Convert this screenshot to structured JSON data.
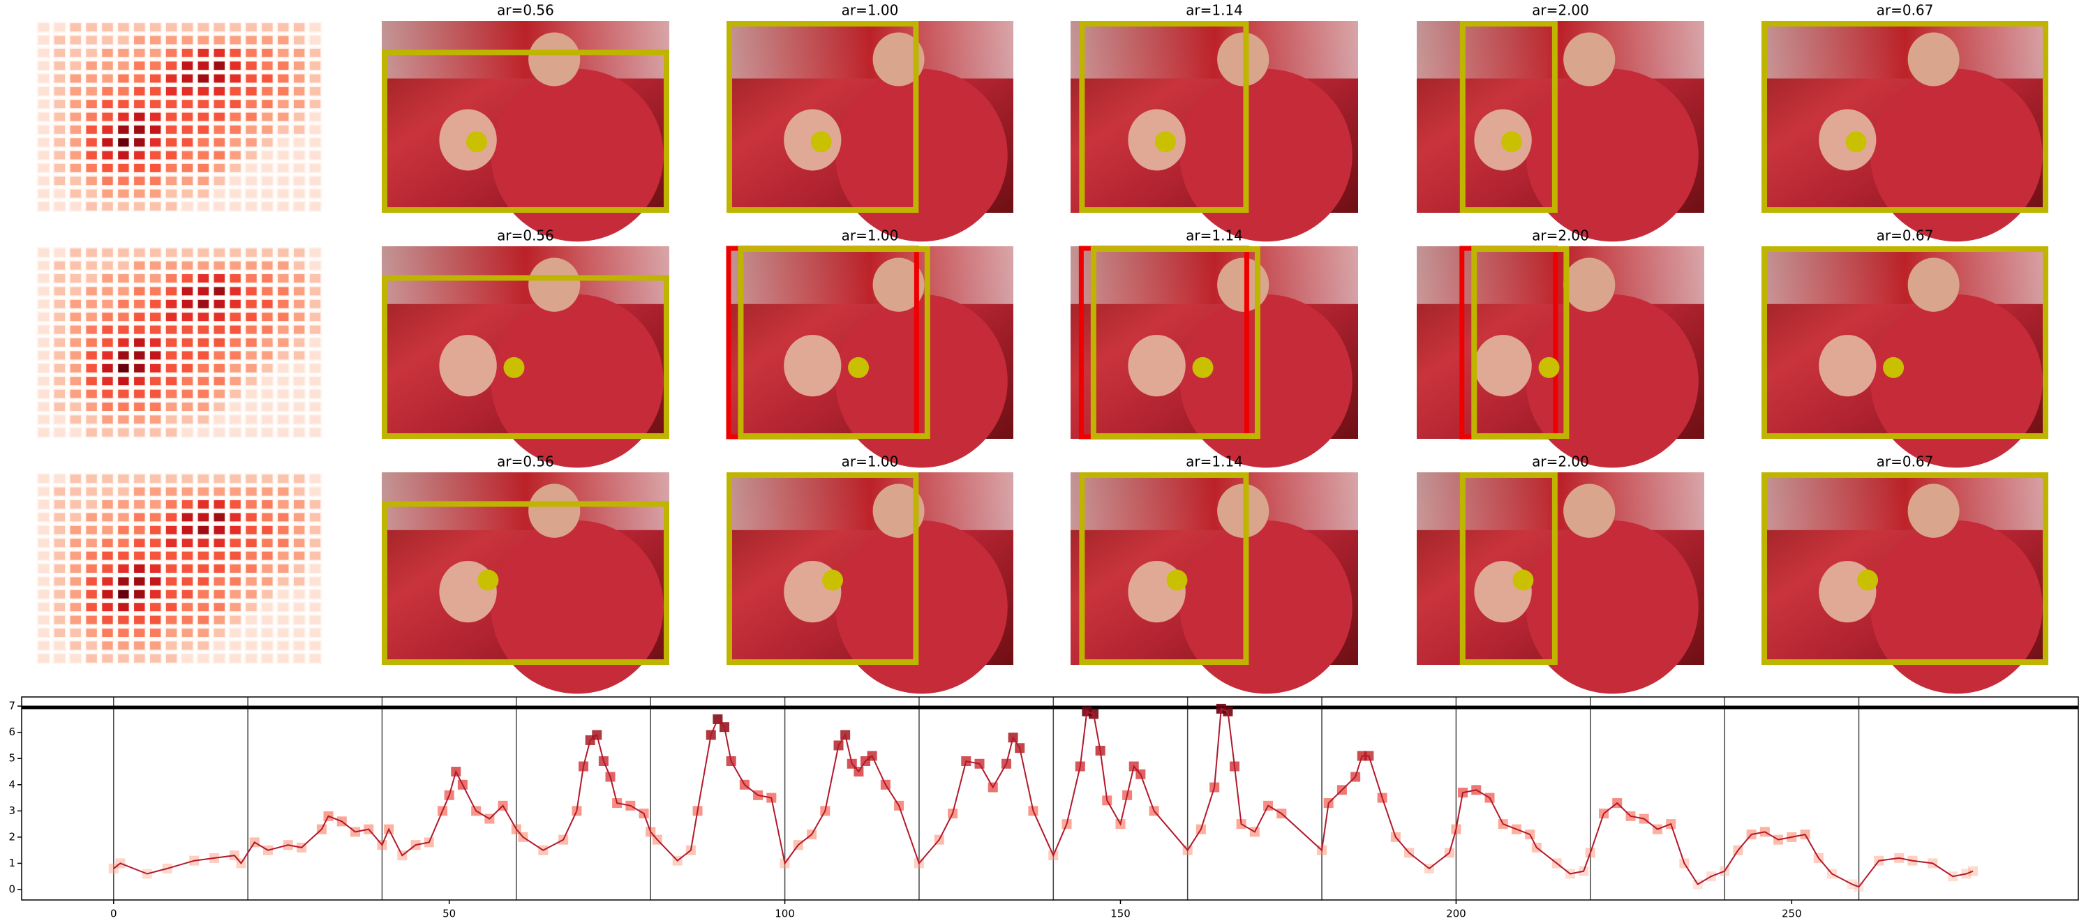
{
  "image_grid": {
    "rows": [
      {
        "titles": [
          "ar=0.56",
          "ar=1.00",
          "ar=1.14",
          "ar=2.00",
          "ar=0.67"
        ]
      },
      {
        "titles": [
          "ar=0.56",
          "ar=1.00",
          "ar=1.14",
          "ar=2.00",
          "ar=0.67"
        ]
      },
      {
        "titles": [
          "ar=0.56",
          "ar=1.00",
          "ar=1.14",
          "ar=2.00",
          "ar=0.67"
        ]
      }
    ],
    "heatmap": [
      [
        1,
        1,
        2,
        2,
        2,
        2,
        2,
        2,
        2,
        2,
        2,
        2,
        2,
        2,
        2,
        2,
        2,
        1
      ],
      [
        1,
        2,
        2,
        2,
        2,
        2,
        3,
        3,
        3,
        3,
        3,
        3,
        3,
        3,
        3,
        3,
        2,
        1
      ],
      [
        1,
        2,
        2,
        2,
        3,
        3,
        3,
        3,
        4,
        5,
        6,
        6,
        5,
        4,
        4,
        3,
        3,
        2
      ],
      [
        1,
        2,
        2,
        3,
        3,
        3,
        4,
        4,
        5,
        7,
        7,
        8,
        6,
        5,
        4,
        4,
        3,
        2
      ],
      [
        1,
        2,
        3,
        3,
        3,
        4,
        4,
        5,
        6,
        7,
        8,
        7,
        6,
        5,
        5,
        4,
        3,
        2
      ],
      [
        1,
        2,
        3,
        3,
        4,
        4,
        5,
        5,
        6,
        6,
        6,
        6,
        5,
        5,
        4,
        4,
        3,
        2
      ],
      [
        1,
        2,
        3,
        4,
        5,
        5,
        5,
        5,
        5,
        5,
        5,
        5,
        5,
        4,
        4,
        3,
        3,
        2
      ],
      [
        1,
        2,
        3,
        4,
        5,
        6,
        7,
        6,
        5,
        5,
        5,
        5,
        4,
        4,
        3,
        3,
        2,
        1
      ],
      [
        1,
        2,
        3,
        5,
        6,
        8,
        8,
        7,
        5,
        5,
        5,
        4,
        4,
        3,
        3,
        2,
        2,
        1
      ],
      [
        1,
        2,
        3,
        5,
        7,
        9,
        8,
        6,
        5,
        5,
        4,
        4,
        3,
        3,
        2,
        1,
        1,
        1
      ],
      [
        1,
        2,
        3,
        5,
        6,
        7,
        6,
        5,
        5,
        4,
        4,
        4,
        3,
        2,
        1,
        1,
        1,
        1
      ],
      [
        1,
        2,
        3,
        4,
        5,
        5,
        5,
        5,
        4,
        4,
        4,
        3,
        2,
        1,
        1,
        1,
        1,
        1
      ],
      [
        1,
        2,
        2,
        3,
        4,
        4,
        4,
        4,
        3,
        3,
        3,
        2,
        1,
        1,
        1,
        1,
        1,
        1
      ],
      [
        1,
        1,
        2,
        2,
        3,
        3,
        3,
        3,
        2,
        2,
        2,
        1,
        1,
        1,
        1,
        1,
        1,
        1
      ],
      [
        1,
        1,
        1,
        2,
        2,
        2,
        2,
        2,
        2,
        1,
        1,
        1,
        1,
        1,
        1,
        1,
        1,
        1
      ]
    ]
  },
  "chart_data": {
    "type": "line",
    "x": [
      0,
      1,
      5,
      8,
      12,
      15,
      18,
      19,
      21,
      23,
      26,
      28,
      31,
      32,
      34,
      36,
      38,
      40,
      41,
      43,
      45,
      47,
      49,
      50,
      51,
      52,
      54,
      56,
      58,
      60,
      61,
      64,
      67,
      69,
      70,
      71,
      72,
      73,
      74,
      75,
      77,
      79,
      80,
      81,
      84,
      86,
      87,
      89,
      90,
      91,
      92,
      94,
      96,
      98,
      100,
      102,
      104,
      106,
      108,
      109,
      110,
      111,
      112,
      113,
      115,
      117,
      120,
      123,
      125,
      127,
      129,
      131,
      133,
      134,
      135,
      137,
      140,
      142,
      144,
      145,
      146,
      147,
      148,
      150,
      151,
      152,
      153,
      155,
      160,
      162,
      164,
      165,
      166,
      167,
      168,
      170,
      172,
      174,
      180,
      181,
      183,
      185,
      186,
      187,
      189,
      191,
      193,
      196,
      199,
      200,
      201,
      203,
      205,
      207,
      209,
      211,
      212,
      215,
      217,
      219,
      220,
      222,
      224,
      226,
      228,
      230,
      232,
      234,
      236,
      238,
      240,
      242,
      244,
      246,
      248,
      250,
      252,
      254,
      256,
      259,
      260,
      263,
      266,
      268,
      271,
      274,
      276,
      277
    ],
    "values": [
      0.8,
      1.0,
      0.6,
      0.8,
      1.1,
      1.2,
      1.3,
      1.0,
      1.8,
      1.5,
      1.7,
      1.6,
      2.3,
      2.8,
      2.6,
      2.2,
      2.3,
      1.7,
      2.3,
      1.3,
      1.7,
      1.8,
      3.0,
      3.6,
      4.5,
      4.0,
      3.0,
      2.7,
      3.2,
      2.3,
      2.0,
      1.5,
      1.9,
      3.0,
      4.7,
      5.7,
      5.9,
      4.9,
      4.3,
      3.3,
      3.2,
      2.9,
      2.2,
      1.9,
      1.1,
      1.5,
      3.0,
      5.9,
      6.5,
      6.2,
      4.9,
      4.0,
      3.6,
      3.5,
      1.0,
      1.7,
      2.1,
      3.0,
      5.5,
      5.9,
      4.8,
      4.5,
      4.9,
      5.1,
      4.0,
      3.2,
      1.0,
      1.9,
      2.9,
      4.9,
      4.8,
      3.9,
      4.8,
      5.8,
      5.4,
      3.0,
      1.3,
      2.5,
      4.7,
      6.8,
      6.7,
      5.3,
      3.4,
      2.5,
      3.6,
      4.7,
      4.4,
      3.0,
      1.5,
      2.3,
      3.9,
      6.9,
      6.8,
      4.7,
      2.5,
      2.2,
      3.2,
      2.9,
      1.5,
      3.3,
      3.8,
      4.3,
      5.1,
      5.1,
      3.5,
      2.0,
      1.4,
      0.8,
      1.4,
      2.3,
      3.7,
      3.8,
      3.5,
      2.5,
      2.3,
      2.1,
      1.6,
      1.0,
      0.6,
      0.7,
      1.4,
      2.9,
      3.3,
      2.8,
      2.7,
      2.3,
      2.5,
      1.0,
      0.2,
      0.5,
      0.7,
      1.5,
      2.1,
      2.2,
      1.9,
      2.0,
      2.1,
      1.2,
      0.6,
      0.2,
      0.1,
      1.1,
      1.2,
      1.1,
      1.0,
      0.5,
      0.6,
      0.7
    ],
    "color": "#b2182b",
    "colormap": "Reds",
    "xlim": [
      -13.7,
      292.7
    ],
    "ylim": [
      -0.4,
      7.35
    ],
    "xticks": [
      0,
      50,
      100,
      150,
      200,
      250
    ],
    "yticks": [
      0,
      1,
      2,
      3,
      4,
      5,
      6,
      7
    ],
    "vlines": [
      0,
      20,
      40,
      60,
      80,
      100,
      120,
      140,
      160,
      180,
      200,
      220,
      240,
      260
    ],
    "hline": 6.95
  }
}
